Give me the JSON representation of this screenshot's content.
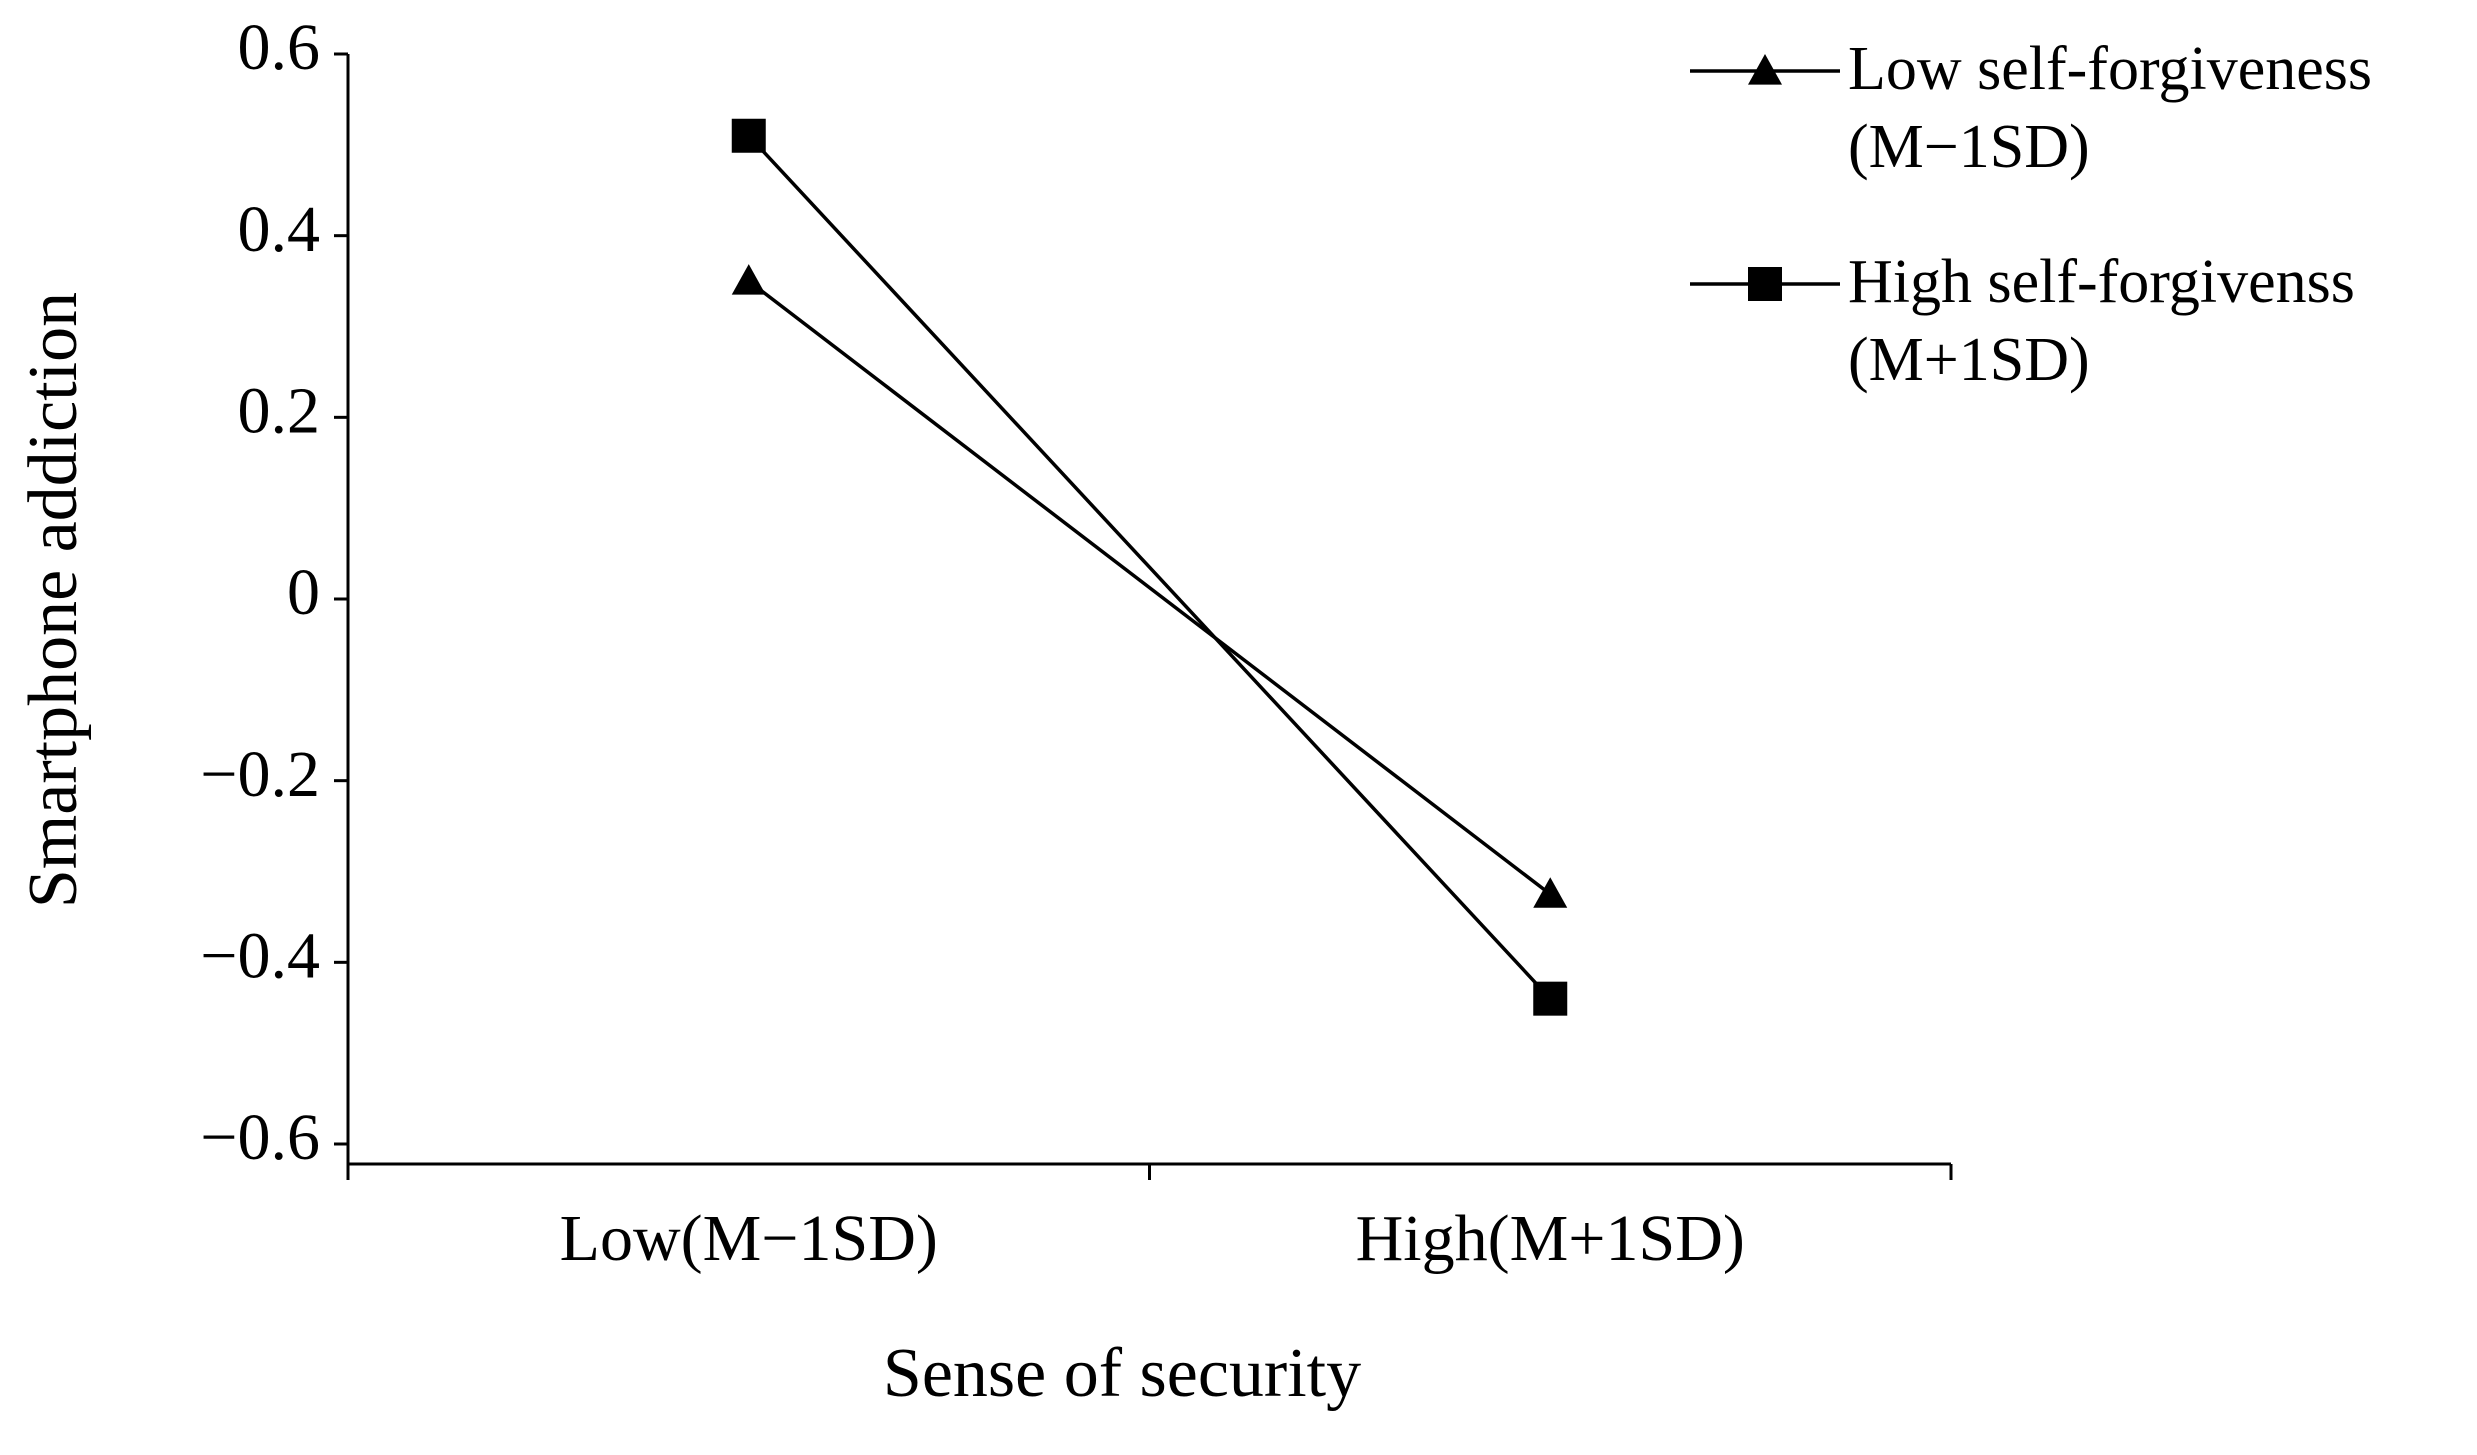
{
  "chart_data": {
    "type": "line",
    "x_label": "Sense of security",
    "y_label": "Smartphone addiction",
    "categories": [
      "Low(M−1SD)",
      "High(M+1SD)"
    ],
    "series": [
      {
        "name": "Low self-forgiveness (M−1SD)",
        "color": "#000000",
        "marker": "triangle",
        "values": [
          0.35,
          -0.325
        ]
      },
      {
        "name": "High self-forgivenss (M+1SD)",
        "color": "#000000",
        "marker": "square",
        "values": [
          0.51,
          -0.44
        ]
      }
    ],
    "ylim": [
      -0.6,
      0.6
    ],
    "yticks": [
      {
        "value": -0.6,
        "label": "−0.6"
      },
      {
        "value": -0.4,
        "label": "−0.4"
      },
      {
        "value": -0.2,
        "label": "−0.2"
      },
      0,
      0.2,
      0.4,
      0.6
    ],
    "grid": false,
    "legend": "top-right"
  }
}
